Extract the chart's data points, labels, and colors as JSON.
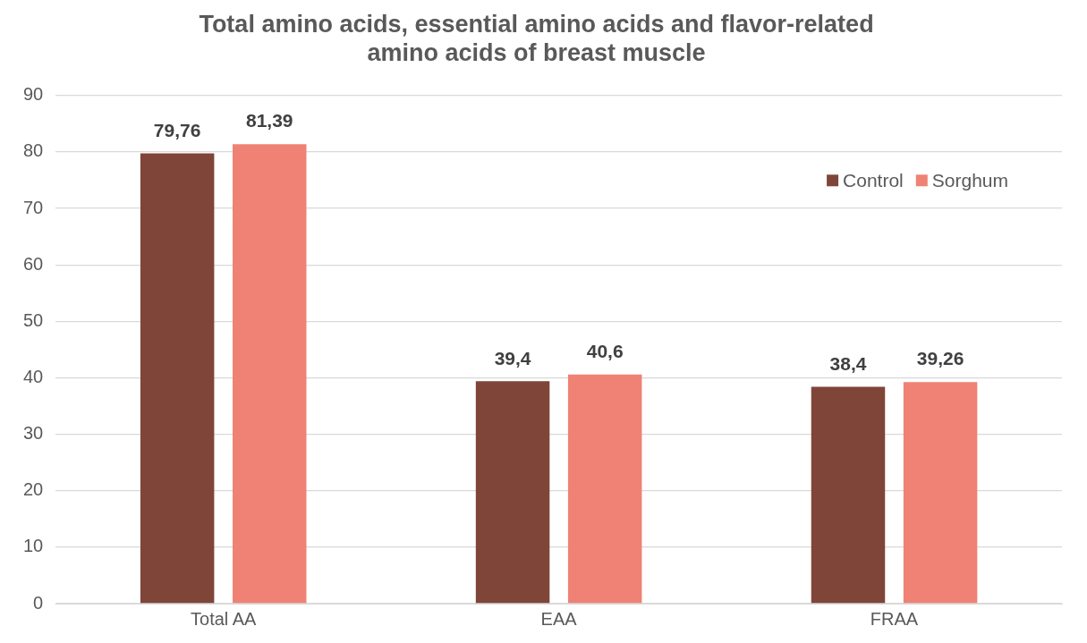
{
  "chart_data": {
    "type": "bar",
    "title": "Total amino acids, essential amino acids and flavor-related amino acids of breast muscle",
    "categories": [
      "Total AA",
      "EAA",
      "FRAA"
    ],
    "series": [
      {
        "name": "Control",
        "color": "#7f4538",
        "values": [
          79.76,
          39.4,
          38.4
        ],
        "value_labels": [
          "79,76",
          "39,4",
          "38,4"
        ]
      },
      {
        "name": "Sorghum",
        "color": "#ef8275",
        "values": [
          81.39,
          40.6,
          39.26
        ],
        "value_labels": [
          "81,39",
          "40,6",
          "39,26"
        ]
      }
    ],
    "ylim": [
      0,
      90
    ],
    "yticks": [
      0,
      10,
      20,
      30,
      40,
      50,
      60,
      70,
      80,
      90
    ],
    "grid": "y",
    "legend": "top right"
  }
}
